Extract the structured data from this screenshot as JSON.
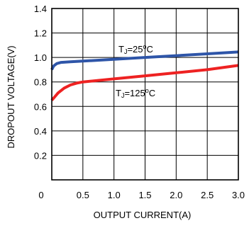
{
  "chart_data": {
    "type": "line",
    "title": "",
    "xlabel": "OUTPUT  CURRENT(A)",
    "ylabel": "DROPOUT VOLTAGE(V)",
    "xlim": [
      0,
      3.0
    ],
    "ylim": [
      0,
      1.4
    ],
    "xticks": [
      "0",
      "0.5",
      "1.0",
      "1.5",
      "2.0",
      "2.5",
      "3.0"
    ],
    "yticks": [
      "0",
      "0.2",
      "0.4",
      "0.6",
      "0.8",
      "1.0",
      "1.2",
      "1.4"
    ],
    "grid": true,
    "series": [
      {
        "name": "TJ=25°C",
        "label_main": "T",
        "label_sub": "J",
        "label_mid": "=25",
        "label_sup": "o",
        "label_end": "C",
        "color": "#2e55a8",
        "x": [
          0.0,
          0.03,
          0.08,
          0.15,
          0.3,
          0.5,
          1.0,
          1.5,
          2.0,
          2.5,
          3.0
        ],
        "y": [
          0.9,
          0.93,
          0.95,
          0.96,
          0.965,
          0.97,
          0.985,
          1.0,
          1.015,
          1.03,
          1.045
        ]
      },
      {
        "name": "TJ=125°C",
        "label_main": "T",
        "label_sub": "J",
        "label_mid": "=125",
        "label_sup": "o",
        "label_end": "C",
        "color": "#ee2222",
        "x": [
          0.0,
          0.05,
          0.1,
          0.2,
          0.3,
          0.4,
          0.5,
          1.0,
          1.5,
          2.0,
          2.5,
          3.0
        ],
        "y": [
          0.65,
          0.68,
          0.71,
          0.75,
          0.775,
          0.79,
          0.8,
          0.825,
          0.85,
          0.875,
          0.9,
          0.935
        ]
      }
    ]
  }
}
